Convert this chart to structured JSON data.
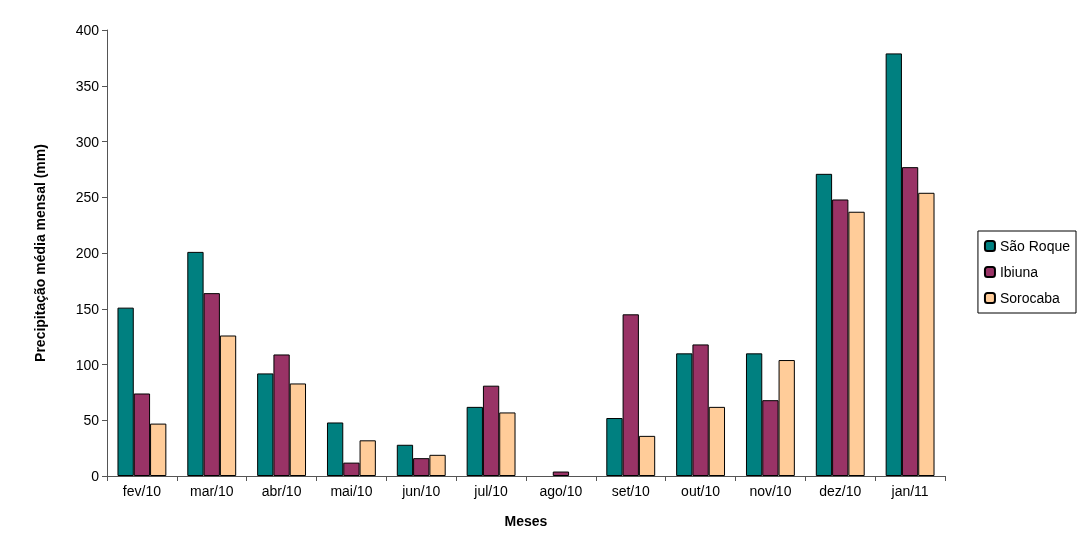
{
  "chart_data": {
    "type": "bar",
    "xlabel": "Meses",
    "ylabel": "Precipitação média mensal (mm)",
    "categories": [
      "fev/10",
      "mar/10",
      "abr/10",
      "mai/10",
      "jun/10",
      "jul/10",
      "ago/10",
      "set/10",
      "out/10",
      "nov/10",
      "dez/10",
      "jan/11"
    ],
    "series": [
      {
        "name": "São Roque",
        "color": "#008080",
        "values": [
          151,
          201,
          92,
          48,
          28,
          62,
          null,
          52,
          110,
          110,
          271,
          379
        ]
      },
      {
        "name": "Ibiuna",
        "color": "#993366",
        "values": [
          74,
          164,
          109,
          12,
          16,
          81,
          4,
          145,
          118,
          68,
          248,
          277
        ]
      },
      {
        "name": "Sorocaba",
        "color": "#ffcc99",
        "values": [
          47,
          126,
          83,
          32,
          19,
          57,
          null,
          36,
          62,
          104,
          237,
          254
        ]
      }
    ],
    "ylim": [
      0,
      400
    ],
    "yticks": [
      0,
      50,
      100,
      150,
      200,
      250,
      300,
      350,
      400
    ],
    "grid": false,
    "legend": "right"
  }
}
